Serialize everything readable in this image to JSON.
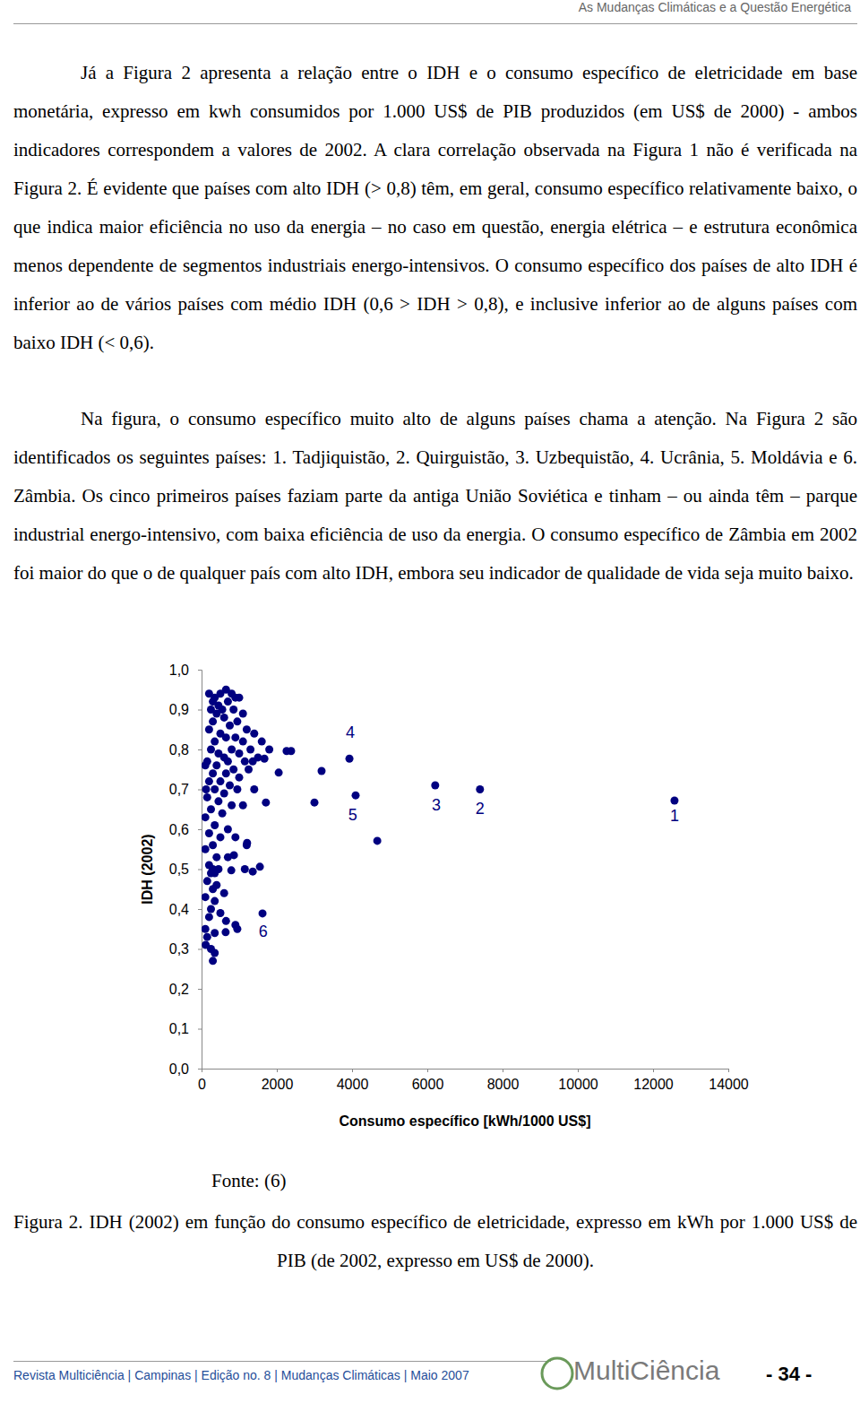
{
  "header": {
    "running_title": "As Mudanças Climáticas e a Questão Energética"
  },
  "paragraphs": [
    "Já a Figura 2 apresenta a relação entre o IDH e o consumo específico de eletricidade em base monetária, expresso em kwh consumidos por 1.000 US$ de PIB produzidos (em US$ de 2000) - ambos indicadores correspondem a valores de 2002. A clara correlação observada na Figura 1 não é verificada na Figura 2. É evidente que países com alto IDH (> 0,8) têm, em geral, consumo específico relativamente baixo, o que indica maior eficiência no uso da energia – no caso em questão, energia elétrica – e estrutura econômica menos dependente de segmentos industriais energo-intensivos. O consumo específico dos países de alto IDH é inferior ao de vários países com médio IDH (0,6 > IDH > 0,8), e inclusive inferior ao de alguns países com baixo IDH (< 0,6).",
    "Na figura, o consumo específico muito alto de alguns países chama a atenção. Na Figura 2 são identificados os seguintes países: 1. Tadjiquistão, 2. Quirguistão, 3. Uzbequistão, 4. Ucrânia, 5. Moldávia e 6. Zâmbia. Os cinco primeiros países faziam parte da antiga União Soviética e tinham – ou ainda têm – parque industrial energo-intensivo, com baixa eficiência de uso da energia. O consumo específico de Zâmbia em 2002 foi maior do que o de qualquer país com alto IDH, embora seu indicador de qualidade de vida seja muito baixo."
  ],
  "chart_data": {
    "type": "scatter",
    "x_label": "Consumo específico [kWh/1000 US$]",
    "y_label": "IDH (2002)",
    "color": "#000080",
    "marker": "circle",
    "grid": false,
    "xlim": [
      0,
      14000
    ],
    "ylim": [
      0,
      1
    ],
    "xticks": [
      0,
      2000,
      4000,
      6000,
      8000,
      10000,
      12000,
      14000
    ],
    "yticks": [
      {
        "value": 0,
        "label": "0,0"
      },
      {
        "value": 0.1,
        "label": "0,1"
      },
      {
        "value": 0.2,
        "label": "0,2"
      },
      {
        "value": 0.3,
        "label": "0,3"
      },
      {
        "value": 0.4,
        "label": "0,4"
      },
      {
        "value": 0.5,
        "label": "0,5"
      },
      {
        "value": 0.6,
        "label": "0,6"
      },
      {
        "value": 0.7,
        "label": "0,7"
      },
      {
        "value": 0.8,
        "label": "0,8"
      },
      {
        "value": 0.9,
        "label": "0,9"
      },
      {
        "value": 1,
        "label": "1,0"
      }
    ],
    "x": [
      12570,
      7400,
      6210,
      3930,
      4095,
      1620,
      4670,
      3190,
      3000,
      2380,
      2260,
      2050,
      1710,
      1670,
      1360,
      1550,
      1360,
      1210,
      860,
      790,
      640,
      200,
      350,
      500,
      650,
      800,
      900,
      300,
      450,
      700,
      1000,
      250,
      550,
      850,
      400,
      600,
      1100,
      300,
      750,
      950,
      1200,
      200,
      500,
      1400,
      650,
      900,
      350,
      1100,
      1600,
      250,
      800,
      1300,
      1800,
      450,
      1000,
      600,
      1500,
      150,
      700,
      1150,
      100,
      400,
      850,
      1250,
      300,
      650,
      1000,
      200,
      500,
      750,
      120,
      350,
      950,
      1400,
      600,
      150,
      450,
      800,
      1100,
      250,
      550,
      100,
      350,
      700,
      200,
      500,
      900,
      300,
      1200,
      100,
      400,
      700,
      200,
      300,
      450,
      350,
      250,
      1150,
      150,
      400,
      300,
      600,
      100,
      350,
      250,
      500,
      200,
      650,
      100,
      350,
      900,
      150,
      110,
      250,
      350,
      300,
      950
    ],
    "values": [
      0.672,
      0.7,
      0.71,
      0.777,
      0.685,
      0.389,
      0.571,
      0.746,
      0.667,
      0.796,
      0.796,
      0.742,
      0.667,
      0.777,
      0.77,
      0.506,
      0.494,
      0.566,
      0.535,
      0.497,
      0.342,
      0.94,
      0.93,
      0.94,
      0.95,
      0.94,
      0.93,
      0.92,
      0.91,
      0.92,
      0.93,
      0.9,
      0.9,
      0.9,
      0.89,
      0.88,
      0.89,
      0.87,
      0.86,
      0.87,
      0.85,
      0.85,
      0.84,
      0.84,
      0.83,
      0.83,
      0.82,
      0.82,
      0.82,
      0.8,
      0.8,
      0.8,
      0.8,
      0.79,
      0.79,
      0.78,
      0.78,
      0.77,
      0.77,
      0.77,
      0.76,
      0.76,
      0.75,
      0.75,
      0.74,
      0.74,
      0.73,
      0.72,
      0.72,
      0.71,
      0.7,
      0.7,
      0.7,
      0.7,
      0.69,
      0.68,
      0.67,
      0.66,
      0.66,
      0.65,
      0.64,
      0.63,
      0.61,
      0.6,
      0.59,
      0.58,
      0.58,
      0.56,
      0.56,
      0.55,
      0.53,
      0.53,
      0.51,
      0.5,
      0.5,
      0.49,
      0.49,
      0.5,
      0.47,
      0.46,
      0.45,
      0.44,
      0.43,
      0.42,
      0.4,
      0.39,
      0.38,
      0.37,
      0.35,
      0.34,
      0.36,
      0.33,
      0.31,
      0.3,
      0.29,
      0.27,
      0.35
    ],
    "annotations": [
      {
        "text": "1",
        "x": 12570,
        "y": 0.63
      },
      {
        "text": "2",
        "x": 7400,
        "y": 0.65
      },
      {
        "text": "3",
        "x": 6240,
        "y": 0.658
      },
      {
        "text": "4",
        "x": 3950,
        "y": 0.84
      },
      {
        "text": "5",
        "x": 4020,
        "y": 0.634
      },
      {
        "text": "6",
        "x": 1640,
        "y": 0.342
      }
    ]
  },
  "source": "Fonte: (6)",
  "caption": "Figura 2. IDH (2002) em função do consumo específico de eletricidade, expresso em kWh por 1.000 US$ de PIB (de 2002, expresso em US$ de 2000).",
  "footer": {
    "journal": "Revista Multiciência | Campinas | Edição no. 8 | Mudanças Climáticas | Maio 2007",
    "logo": "MultiCiência",
    "page": "- 34 -"
  }
}
